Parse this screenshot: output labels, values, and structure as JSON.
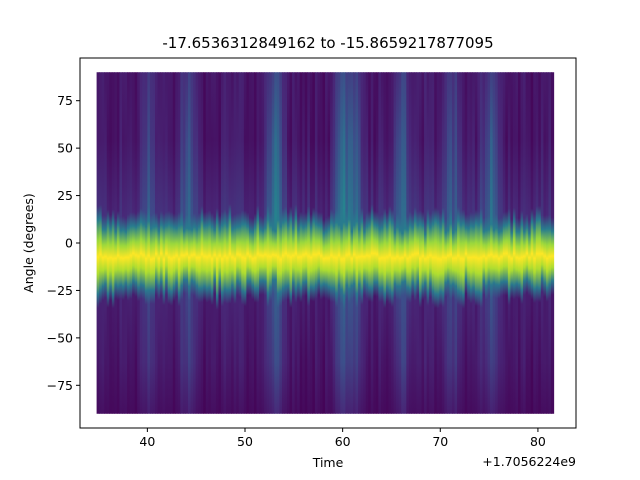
{
  "chart_data": {
    "type": "heatmap",
    "title": "-17.6536312849162 to -15.8659217877095",
    "xlabel": "Time",
    "ylabel": "Angle (degrees)",
    "x_offset_label": "+1.7056224e9",
    "colormap": "viridis",
    "xlim": [
      33.1,
      83.9
    ],
    "ylim": [
      -97.5,
      97.5
    ],
    "data_x_range": [
      34.8,
      81.6
    ],
    "data_y_range": [
      -90,
      90
    ],
    "xticks": [
      40,
      50,
      60,
      70,
      80
    ],
    "xtick_labels": [
      "40",
      "50",
      "60",
      "70",
      "80"
    ],
    "yticks": [
      75,
      50,
      25,
      0,
      -25,
      -50,
      -75
    ],
    "ytick_labels": [
      "75",
      "50",
      "25",
      "0",
      "−25",
      "−50",
      "−75"
    ],
    "ridge_center_deg": -7,
    "ridge_halfwidth_deg": 15,
    "bright_time_regions": [
      {
        "time": 40,
        "level": 0.25
      },
      {
        "time": 44,
        "level": 0.3
      },
      {
        "time": 53,
        "level": 0.35
      },
      {
        "time": 60,
        "level": 0.45
      },
      {
        "time": 61,
        "level": 0.35
      },
      {
        "time": 66,
        "level": 0.3
      },
      {
        "time": 71,
        "level": 0.3
      },
      {
        "time": 75,
        "level": 0.35
      }
    ],
    "grid": false,
    "legend": "none"
  }
}
